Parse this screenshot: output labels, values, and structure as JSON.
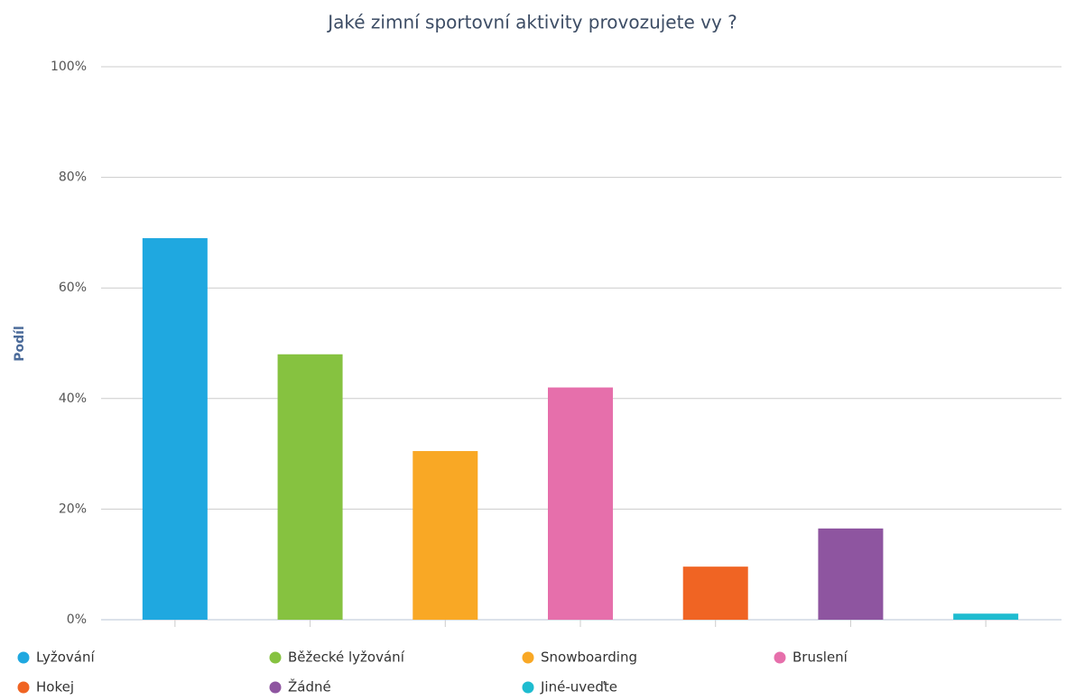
{
  "chart_data": {
    "type": "bar",
    "title": "Jaké zimní sportovní aktivity provozujete vy ?",
    "y_label": "Podíl",
    "categories": [
      "Lyžování",
      "Běžecké lyžování",
      "Snowboarding",
      "Bruslení",
      "Hokej",
      "Žádné",
      "Jiné-uveďte"
    ],
    "values": [
      69,
      48,
      30.5,
      42,
      9.6,
      16.5,
      1.1
    ],
    "colors": [
      "#1fa8e0",
      "#86c240",
      "#f9a825",
      "#e66fab",
      "#f06423",
      "#8e55a0",
      "#1ebcd0"
    ],
    "ylim": [
      0,
      100
    ],
    "yticks": [
      {
        "value": 0,
        "label": "0%"
      },
      {
        "value": 20,
        "label": "20%"
      },
      {
        "value": 40,
        "label": "40%"
      },
      {
        "value": 60,
        "label": "60%"
      },
      {
        "value": 80,
        "label": "80%"
      },
      {
        "value": 100,
        "label": "100%"
      }
    ],
    "grid": true,
    "legend": "bottom"
  }
}
